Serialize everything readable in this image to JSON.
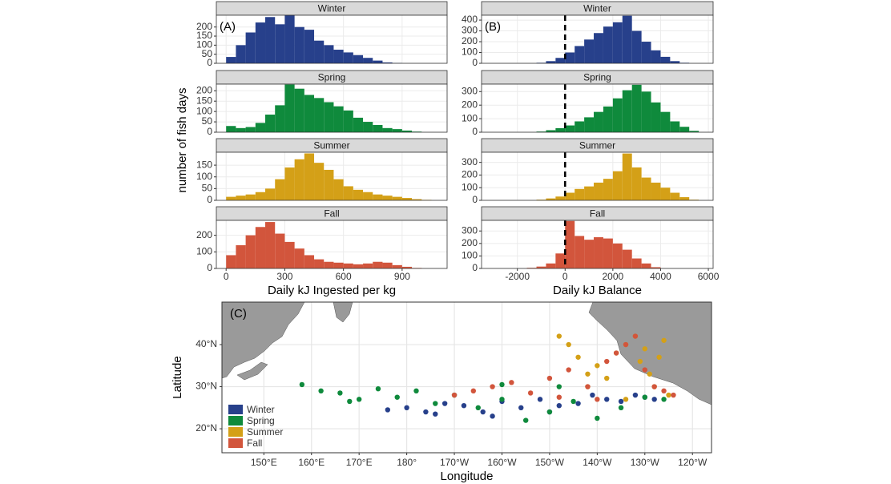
{
  "chart_data": [
    {
      "type": "histogram",
      "panel_label": "(A)",
      "xlabel": "Daily kJ Ingested per kg",
      "ylabel": "number of fish days",
      "bins": [
        0,
        50,
        100,
        150,
        200,
        250,
        300,
        350,
        400,
        450,
        500,
        550,
        600,
        650,
        700,
        750,
        800,
        850,
        900,
        950,
        1000,
        1050,
        1100
      ],
      "xlim": [
        -50,
        1130
      ],
      "xticks": [
        0,
        300,
        600,
        900
      ],
      "grid": true,
      "facets": [
        {
          "title": "Winter",
          "color": "#27408b",
          "ylim": [
            0,
            265
          ],
          "yticks": [
            0,
            50,
            100,
            150,
            200
          ],
          "counts": [
            35,
            100,
            170,
            225,
            255,
            215,
            265,
            200,
            185,
            125,
            100,
            75,
            60,
            45,
            30,
            15,
            5,
            2,
            0,
            0,
            0,
            0
          ]
        },
        {
          "title": "Spring",
          "color": "#0f8a3c",
          "ylim": [
            0,
            232
          ],
          "yticks": [
            0,
            50,
            100,
            150,
            200
          ],
          "counts": [
            30,
            20,
            25,
            45,
            85,
            130,
            230,
            210,
            180,
            165,
            145,
            125,
            105,
            70,
            50,
            35,
            20,
            15,
            8,
            3,
            0,
            0
          ]
        },
        {
          "title": "Summer",
          "color": "#d4a017",
          "ylim": [
            0,
            205
          ],
          "yticks": [
            0,
            50,
            100,
            150
          ],
          "counts": [
            15,
            20,
            25,
            35,
            50,
            90,
            140,
            175,
            200,
            160,
            130,
            90,
            60,
            45,
            35,
            25,
            20,
            15,
            10,
            5,
            2,
            0
          ]
        },
        {
          "title": "Fall",
          "color": "#d2553c",
          "ylim": [
            0,
            290
          ],
          "yticks": [
            0,
            100,
            200
          ],
          "counts": [
            80,
            140,
            200,
            250,
            280,
            210,
            160,
            120,
            80,
            55,
            40,
            35,
            30,
            25,
            30,
            40,
            35,
            20,
            10,
            3,
            0,
            0
          ]
        }
      ]
    },
    {
      "type": "histogram",
      "panel_label": "(B)",
      "xlabel": "Daily kJ Balance",
      "bins": [
        -3200,
        -2800,
        -2400,
        -2000,
        -1600,
        -1200,
        -800,
        -400,
        0,
        400,
        800,
        1200,
        1600,
        2000,
        2400,
        2800,
        3200,
        3600,
        4000,
        4400,
        4800,
        5200,
        5600
      ],
      "xlim": [
        -3500,
        6200
      ],
      "xticks": [
        -2000,
        0,
        2000,
        4000,
        6000
      ],
      "vline": 0,
      "grid": true,
      "facets": [
        {
          "title": "Winter",
          "color": "#27408b",
          "ylim": [
            0,
            445
          ],
          "yticks": [
            0,
            100,
            200,
            300,
            400
          ],
          "counts": [
            0,
            0,
            0,
            0,
            0,
            5,
            20,
            50,
            100,
            160,
            220,
            280,
            340,
            380,
            440,
            300,
            200,
            120,
            60,
            20,
            5,
            0
          ]
        },
        {
          "title": "Spring",
          "color": "#0f8a3c",
          "ylim": [
            0,
            355
          ],
          "yticks": [
            0,
            100,
            200,
            300
          ],
          "counts": [
            0,
            0,
            0,
            0,
            0,
            5,
            15,
            30,
            50,
            80,
            110,
            150,
            190,
            250,
            310,
            350,
            300,
            220,
            150,
            80,
            40,
            10
          ]
        },
        {
          "title": "Summer",
          "color": "#d4a017",
          "ylim": [
            0,
            380
          ],
          "yticks": [
            0,
            100,
            200,
            300
          ],
          "counts": [
            0,
            0,
            0,
            0,
            0,
            5,
            15,
            30,
            60,
            90,
            110,
            140,
            170,
            230,
            370,
            260,
            180,
            140,
            100,
            60,
            25,
            5
          ]
        },
        {
          "title": "Fall",
          "color": "#d2553c",
          "ylim": [
            0,
            385
          ],
          "yticks": [
            0,
            100,
            200,
            300
          ],
          "counts": [
            0,
            0,
            0,
            0,
            5,
            15,
            40,
            120,
            380,
            260,
            230,
            250,
            240,
            200,
            150,
            80,
            40,
            10,
            0,
            0,
            0,
            0
          ]
        }
      ]
    },
    {
      "type": "map",
      "panel_label": "(C)",
      "xlabel": "Longitude",
      "ylabel": "Latitude",
      "xlim": [
        141.2,
        244
      ],
      "ylim": [
        14.3,
        50.1
      ],
      "legend": "bottom-left",
      "grid": true,
      "xticks": [
        {
          "value": 150,
          "label": "150°E"
        },
        {
          "value": 160,
          "label": "160°E"
        },
        {
          "value": 170,
          "label": "170°E"
        },
        {
          "value": 180,
          "label": "180°"
        },
        {
          "value": 190,
          "label": "170°W"
        },
        {
          "value": 200,
          "label": "160°W"
        },
        {
          "value": 210,
          "label": "150°W"
        },
        {
          "value": 220,
          "label": "140°W"
        },
        {
          "value": 230,
          "label": "130°W"
        },
        {
          "value": 240,
          "label": "120°W"
        }
      ],
      "yticks": [
        {
          "value": 20,
          "label": "20°N"
        },
        {
          "value": 30,
          "label": "30°N"
        },
        {
          "value": 40,
          "label": "40°N"
        }
      ],
      "series": [
        {
          "name": "Winter",
          "color": "#27408b",
          "x": [
            176,
            180,
            184,
            188,
            192,
            196,
            200,
            204,
            208,
            212,
            216,
            219,
            222,
            225,
            228,
            230,
            232,
            186,
            198,
            210
          ],
          "values": [
            24.5,
            25,
            24,
            26,
            25.5,
            24,
            26.5,
            25,
            27,
            25.5,
            26,
            28,
            27,
            26.5,
            28,
            27.5,
            27,
            23.5,
            23,
            24
          ]
        },
        {
          "name": "Spring",
          "color": "#0f8a3c",
          "x": [
            158,
            162,
            166,
            170,
            174,
            178,
            182,
            186,
            190,
            195,
            200,
            205,
            210,
            215,
            220,
            225,
            230,
            234,
            168,
            200,
            212
          ],
          "values": [
            30.5,
            29,
            28.5,
            27,
            29.5,
            27.5,
            29,
            26,
            28,
            25,
            27,
            22,
            24,
            26.5,
            22.5,
            25,
            27.5,
            27,
            26.5,
            30.5,
            30
          ]
        },
        {
          "name": "Summer",
          "color": "#d4a017",
          "x": [
            212,
            214,
            216,
            218,
            220,
            222,
            224,
            226,
            228,
            229,
            230,
            231,
            232,
            233,
            234,
            235,
            218,
            226
          ],
          "values": [
            42,
            40,
            37,
            33,
            35,
            32,
            38,
            40,
            42,
            36,
            39,
            33,
            30,
            37,
            41,
            28,
            30,
            27
          ]
        },
        {
          "name": "Fall",
          "color": "#d2553c",
          "x": [
            190,
            194,
            198,
            202,
            206,
            210,
            214,
            218,
            222,
            224,
            226,
            228,
            230,
            232,
            234,
            236,
            220,
            212
          ],
          "values": [
            28,
            29,
            30,
            31,
            28.5,
            32,
            34,
            30,
            36,
            38,
            40,
            42,
            34,
            30,
            29,
            28,
            27,
            27.5
          ]
        }
      ]
    }
  ]
}
